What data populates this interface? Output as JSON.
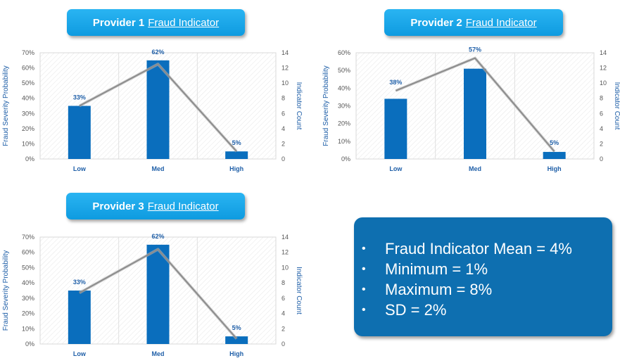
{
  "banners": [
    {
      "bold": "Provider 1",
      "link": "Fraud Indicator"
    },
    {
      "bold": "Provider 2",
      "link": "Fraud Indicator"
    },
    {
      "bold": "Provider 3",
      "link": "Fraud Indicator"
    }
  ],
  "stats": {
    "items": [
      "Fraud Indicator Mean = 4%",
      "Minimum = 1%",
      "Maximum = 8%",
      "SD = 2%"
    ]
  },
  "colors": {
    "bar": "#0a6ebd",
    "line": "#8c8c8c",
    "banner": "#1aa8ec",
    "stats_box": "#0e6fb0"
  },
  "chart_data": [
    {
      "type": "bar",
      "categories": [
        "Low",
        "Med",
        "High"
      ],
      "series": [
        {
          "values": [
            0.35,
            0.65,
            0.05
          ],
          "axis": "left"
        },
        {
          "values": [
            7,
            12.5,
            1
          ],
          "axis": "right"
        }
      ],
      "data_labels": [
        "33%",
        "62%",
        "5%"
      ],
      "ylabel": "Fraud Severity Probability",
      "y2label": "Indicator Count",
      "ylim": [
        0,
        0.7
      ],
      "y2lim": [
        0,
        14
      ],
      "yticks": [
        "0%",
        "10%",
        "20%",
        "30%",
        "40%",
        "50%",
        "60%",
        "70%"
      ],
      "y2ticks": [
        "0",
        "2",
        "4",
        "6",
        "8",
        "10",
        "12",
        "14"
      ],
      "grid": false
    },
    {
      "type": "bar",
      "categories": [
        "Low",
        "Med",
        "High"
      ],
      "series": [
        {
          "values": [
            0.34,
            0.51,
            0.04
          ],
          "axis": "left"
        },
        {
          "values": [
            9,
            13.3,
            1
          ],
          "axis": "right"
        }
      ],
      "data_labels": [
        "38%",
        "57%",
        "5%"
      ],
      "ylabel": "Fraud Severity Probability",
      "y2label": "Indicator Count",
      "ylim": [
        0,
        0.6
      ],
      "y2lim": [
        0,
        14
      ],
      "yticks": [
        "0%",
        "10%",
        "20%",
        "30%",
        "40%",
        "50%",
        "60%"
      ],
      "y2ticks": [
        "0",
        "2",
        "4",
        "6",
        "8",
        "10",
        "12",
        "14"
      ],
      "grid": false
    },
    {
      "type": "bar",
      "categories": [
        "Low",
        "Med",
        "High"
      ],
      "series": [
        {
          "values": [
            0.35,
            0.65,
            0.05
          ],
          "axis": "left"
        },
        {
          "values": [
            6.7,
            12.4,
            0.7
          ],
          "axis": "right"
        }
      ],
      "data_labels": [
        "33%",
        "62%",
        "5%"
      ],
      "ylabel": "Fraud Severity Probability",
      "y2label": "Indicator Count",
      "ylim": [
        0,
        0.7
      ],
      "y2lim": [
        0,
        14
      ],
      "yticks": [
        "0%",
        "10%",
        "20%",
        "30%",
        "40%",
        "50%",
        "60%",
        "70%"
      ],
      "y2ticks": [
        "0",
        "2",
        "4",
        "6",
        "8",
        "10",
        "12",
        "14"
      ],
      "grid": false
    }
  ]
}
